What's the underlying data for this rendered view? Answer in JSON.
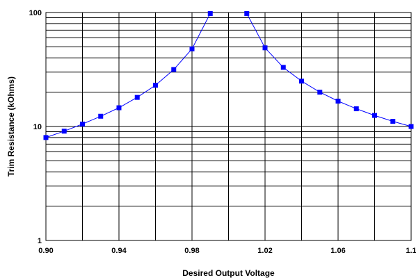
{
  "chart_data": {
    "type": "line",
    "title": "",
    "xlabel": "Desired Output Voltage",
    "ylabel": "Trim Resistance (kOhms)",
    "xlim": [
      0.9,
      1.1
    ],
    "ylim": [
      1,
      100
    ],
    "yscale": "log",
    "grid": true,
    "legend": "none",
    "x_ticks": [
      0.9,
      0.94,
      0.98,
      1.02,
      1.06,
      1.1
    ],
    "x_tick_labels": [
      "0.90",
      "0.94",
      "0.98",
      "1.02",
      "1.06",
      "1.1"
    ],
    "y_ticks": [
      1,
      10,
      100
    ],
    "y_tick_labels": [
      "1",
      "10",
      "100"
    ],
    "line_color": "#0000ff",
    "series": [
      {
        "name": "",
        "segments": [
          {
            "x": [
              0.9,
              0.91,
              0.92,
              0.93,
              0.94,
              0.95,
              0.96,
              0.97,
              0.98,
              0.99
            ],
            "y": [
              8.0,
              9.1,
              10.5,
              12.3,
              14.6,
              18.0,
              23.0,
              31.6,
              48.0,
              98.0
            ]
          },
          {
            "x": [
              1.01,
              1.02,
              1.03,
              1.04,
              1.05,
              1.06,
              1.07,
              1.08,
              1.09,
              1.1
            ],
            "y": [
              98.0,
              49.0,
              33.0,
              25.0,
              20.0,
              16.7,
              14.3,
              12.5,
              11.1,
              10.0
            ]
          }
        ]
      }
    ]
  }
}
